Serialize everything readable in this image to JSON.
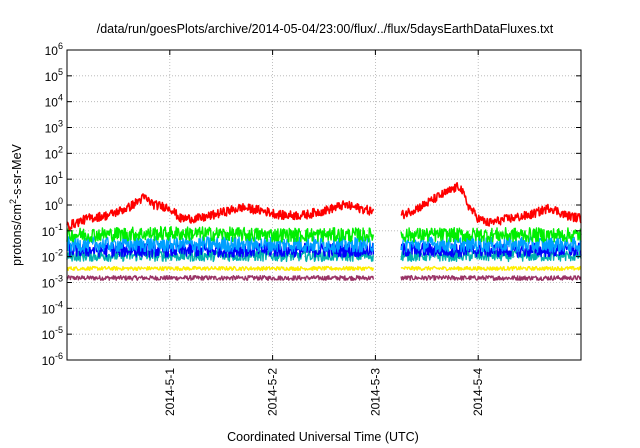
{
  "chart_data": {
    "type": "line",
    "title": "/data/run/goesPlots/archive/2014-05-04/23:00/flux/../flux/5daysEarthDataFluxes.txt",
    "xlabel": "Coordinated Universal Time (UTC)",
    "ylabel_parts": {
      "pre": "protons/cm",
      "sup": "2",
      "post": "-s-sr-MeV"
    },
    "x_unit": "days since start of 2014-04-30",
    "xlim": [
      0,
      5
    ],
    "x_ticks": [
      {
        "value": 1,
        "label": "2014-5-1"
      },
      {
        "value": 2,
        "label": "2014-5-2"
      },
      {
        "value": 3,
        "label": "2014-5-3"
      },
      {
        "value": 4,
        "label": "2014-5-4"
      }
    ],
    "y_scale": "log",
    "ylim_exp": [
      -6,
      6
    ],
    "y_ticks": [
      {
        "exp": 6,
        "base": "10",
        "sup": "6"
      },
      {
        "exp": 5,
        "base": "10",
        "sup": "5"
      },
      {
        "exp": 4,
        "base": "10",
        "sup": "4"
      },
      {
        "exp": 3,
        "base": "10",
        "sup": "3"
      },
      {
        "exp": 2,
        "base": "10",
        "sup": "2"
      },
      {
        "exp": 1,
        "base": "10",
        "sup": "1"
      },
      {
        "exp": 0,
        "base": "10",
        "sup": "0"
      },
      {
        "exp": -1,
        "base": "10",
        "sup": "-1"
      },
      {
        "exp": -2,
        "base": "10",
        "sup": "-2"
      },
      {
        "exp": -3,
        "base": "10",
        "sup": "-3"
      },
      {
        "exp": -4,
        "base": "10",
        "sup": "-4"
      },
      {
        "exp": -5,
        "base": "10",
        "sup": "-5"
      },
      {
        "exp": -6,
        "base": "10",
        "sup": "-6"
      }
    ],
    "grid": true,
    "data_gap": [
      2.98,
      3.25
    ],
    "series": [
      {
        "color": "#ff0000",
        "x": [
          0,
          0.2,
          0.4,
          0.6,
          0.75,
          0.85,
          1.0,
          1.1,
          1.3,
          1.5,
          1.7,
          1.9,
          2.1,
          2.3,
          2.5,
          2.7,
          2.95,
          3.25,
          3.45,
          3.6,
          3.75,
          3.82,
          3.9,
          4.0,
          4.1,
          4.3,
          4.5,
          4.7,
          4.85,
          5.0
        ],
        "y": [
          0.15,
          0.3,
          0.4,
          0.8,
          2.0,
          1.0,
          0.8,
          0.3,
          0.3,
          0.5,
          0.8,
          0.6,
          0.4,
          0.4,
          0.6,
          1.0,
          0.6,
          0.4,
          0.9,
          2.0,
          4.0,
          5.5,
          1.0,
          0.3,
          0.2,
          0.3,
          0.4,
          0.8,
          0.4,
          0.3
        ]
      },
      {
        "color": "#00ee00",
        "x": [
          0,
          1,
          2,
          2.95,
          3.25,
          4,
          5
        ],
        "y": [
          0.07,
          0.08,
          0.07,
          0.07,
          0.07,
          0.07,
          0.07
        ]
      },
      {
        "color": "#00a0ff",
        "x": [
          0,
          1,
          2,
          2.95,
          3.25,
          4,
          5
        ],
        "y": [
          0.03,
          0.03,
          0.03,
          0.03,
          0.03,
          0.03,
          0.03
        ]
      },
      {
        "color": "#0000ff",
        "x": [
          0,
          1,
          2,
          2.95,
          3.25,
          4,
          5
        ],
        "y": [
          0.018,
          0.018,
          0.018,
          0.018,
          0.018,
          0.018,
          0.018
        ]
      },
      {
        "color": "#00b0b0",
        "x": [
          0,
          1,
          2,
          2.95,
          3.25,
          4,
          5
        ],
        "y": [
          0.011,
          0.011,
          0.011,
          0.011,
          0.011,
          0.011,
          0.011
        ]
      },
      {
        "color": "#ffee00",
        "x": [
          0,
          1,
          2,
          2.95,
          3.25,
          4,
          5
        ],
        "y": [
          0.0035,
          0.0035,
          0.0035,
          0.0035,
          0.0035,
          0.0035,
          0.0035
        ]
      },
      {
        "color": "#993366",
        "x": [
          0,
          1,
          2,
          2.95,
          3.25,
          4,
          5
        ],
        "y": [
          0.0015,
          0.0015,
          0.0015,
          0.0015,
          0.0015,
          0.0015,
          0.0015
        ]
      }
    ]
  }
}
